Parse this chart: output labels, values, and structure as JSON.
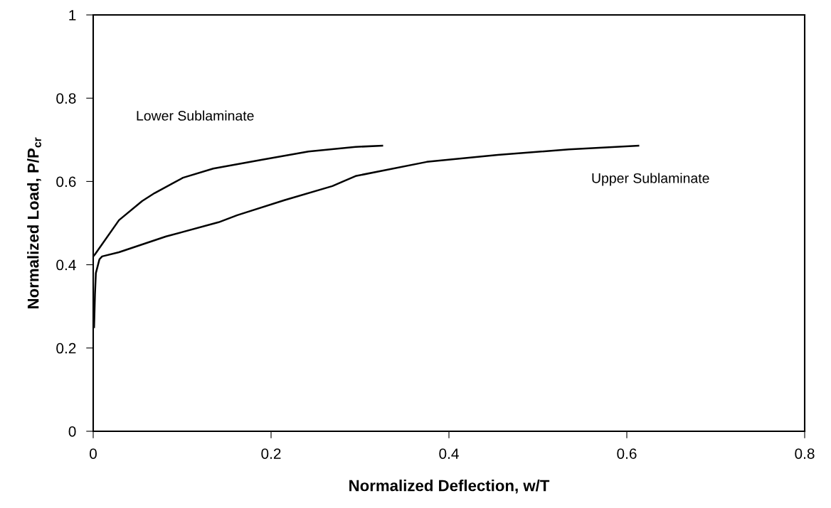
{
  "chart_data": {
    "type": "line",
    "xlabel": "Normalized Deflection, w/T",
    "ylabel": "Normalized Load, P/P$_{cr}$",
    "xlim": [
      0,
      0.8
    ],
    "xticks": [
      0,
      0.2,
      0.4,
      0.6,
      0.8
    ],
    "ylim": [
      0,
      1
    ],
    "yticks": [
      0,
      0.2,
      0.4,
      0.6,
      0.8,
      1
    ],
    "grid": false,
    "legend": false,
    "marker": "none",
    "line_style": "solid",
    "series": [
      {
        "name": "Lower Sublaminate",
        "color": "#000000",
        "x": [
          0,
          0.002,
          0.029,
          0.055,
          0.069,
          0.101,
          0.135,
          0.189,
          0.242,
          0.295,
          0.325
        ],
        "values": [
          0.42,
          0.425,
          0.507,
          0.553,
          0.572,
          0.609,
          0.631,
          0.652,
          0.672,
          0.683,
          0.686
        ]
      },
      {
        "name": "Upper Sublaminate",
        "color": "#000000",
        "x": [
          0.001,
          0.002,
          0.003,
          0.007,
          0.01,
          0.029,
          0.082,
          0.141,
          0.162,
          0.215,
          0.269,
          0.295,
          0.375,
          0.455,
          0.535,
          0.613
        ],
        "values": [
          0.25,
          0.33,
          0.38,
          0.413,
          0.42,
          0.43,
          0.468,
          0.502,
          0.519,
          0.555,
          0.589,
          0.613,
          0.647,
          0.664,
          0.677,
          0.686
        ]
      }
    ]
  }
}
